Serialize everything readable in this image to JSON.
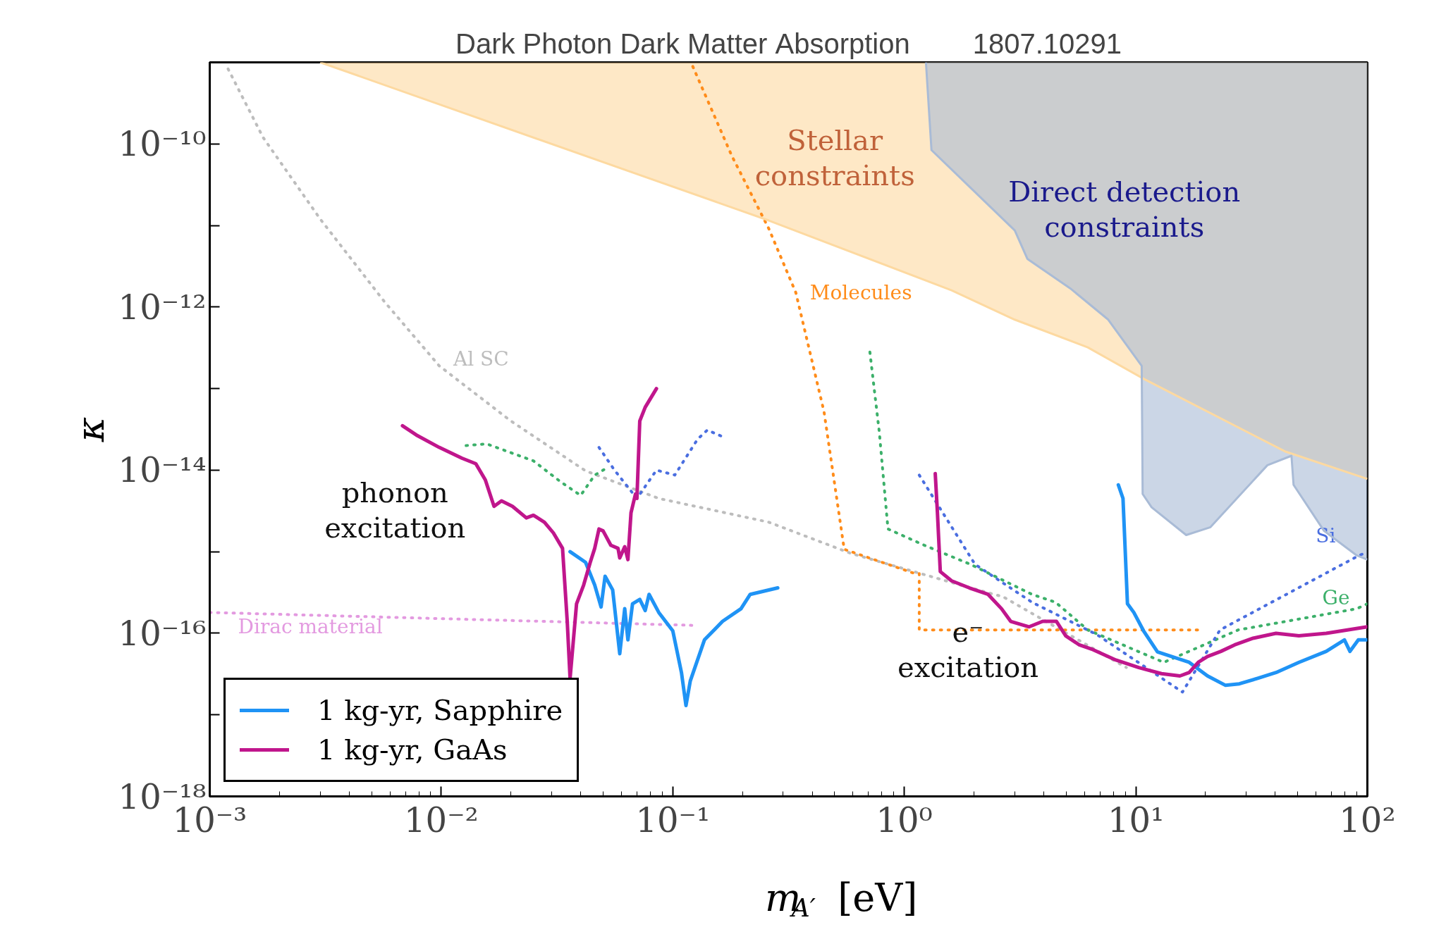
{
  "chart_data": {
    "type": "line",
    "title": "Dark Photon Dark Matter Absorption        1807.10291",
    "xlabel": "m$_{A′}$ [eV]",
    "ylabel": "κ",
    "log": "xy",
    "legend": "bottom left",
    "xlim": [
      0.001,
      100
    ],
    "ylim": [
      1e-18,
      1e-09
    ],
    "xticks": [
      {
        "value": 0.001,
        "label": "10⁻³"
      },
      {
        "value": 0.01,
        "label": "10⁻²"
      },
      {
        "value": 0.1,
        "label": "10⁻¹"
      },
      {
        "value": 1,
        "label": "10⁰"
      },
      {
        "value": 10,
        "label": "10¹"
      },
      {
        "value": 100,
        "label": "10²"
      }
    ],
    "yticks": [
      {
        "value": 1e-18,
        "label": "10⁻¹⁸"
      },
      {
        "value": 1e-17,
        "label": null
      },
      {
        "value": 1e-16,
        "label": "10⁻¹⁶"
      },
      {
        "value": 1e-15,
        "label": null
      },
      {
        "value": 1e-14,
        "label": "10⁻¹⁴"
      },
      {
        "value": 1e-13,
        "label": null
      },
      {
        "value": 1e-12,
        "label": "10⁻¹²"
      },
      {
        "value": 1e-11,
        "label": null
      },
      {
        "value": 1e-10,
        "label": "10⁻¹⁰"
      }
    ],
    "annotations": [
      "Stellar\nconstraints",
      "Direct detection\nconstraints",
      "phonon\nexcitation",
      "e⁻\nexcitation"
    ],
    "series": [
      {
        "color": "#fdd9a0",
        "x": [
          0.003,
          0.26,
          1.6,
          3.0,
          6.2,
          10.9,
          44,
          100
        ],
        "values": [
          1e-09,
          1.15e-11,
          1.6e-12,
          7e-13,
          3.2e-13,
          1.3e-13,
          1.7e-14,
          7.8e-15
        ],
        "lower": [
          1e-09,
          1.15e-11,
          1.6e-12,
          7e-13,
          3.2e-13,
          1.3e-13,
          1.7e-14,
          7.8e-15
        ],
        "upper": [
          1e-09,
          1e-09,
          1e-09,
          1e-09,
          1e-09,
          1e-09,
          1e-09,
          1e-09
        ]
      },
      {
        "color": "#a9bbd6",
        "x": [
          1.24,
          1.31,
          3.0,
          3.4,
          5.2,
          7.6,
          10.6,
          10.7,
          11.7,
          16.5,
          21,
          37,
          47,
          48,
          65,
          90,
          100
        ],
        "values": [
          1e-09,
          8.4e-11,
          8.7e-12,
          3.9e-12,
          1.7e-12,
          7e-13,
          1.9e-13,
          5.1e-15,
          3.5e-15,
          1.6e-15,
          2e-15,
          1.15e-14,
          1.5e-14,
          6.6e-15,
          1.8e-15,
          9e-16,
          8e-16
        ],
        "lower": [
          1e-09,
          8.4e-11,
          8.7e-12,
          3.9e-12,
          1.7e-12,
          7e-13,
          1.9e-13,
          5.1e-15,
          3.5e-15,
          1.6e-15,
          2e-15,
          1.15e-14,
          1.5e-14,
          6.6e-15,
          1.8e-15,
          9e-16,
          8e-16
        ],
        "upper": [
          1e-09,
          1e-09,
          1e-09,
          1e-09,
          1e-09,
          1e-09,
          1e-09,
          1e-09,
          1e-09,
          1e-09,
          1e-09,
          1e-09,
          1e-09,
          1e-09,
          1e-09,
          1e-09,
          1e-09
        ]
      },
      {
        "name": "Dirac material",
        "color": "#e39ae0",
        "line_style": "dotted",
        "x": [
          0.001,
          0.123
        ],
        "values": [
          1.8e-16,
          1.25e-16
        ]
      },
      {
        "name": "Al SC",
        "color": "#bdbdbd",
        "line_style": "dotted",
        "x": [
          0.0012,
          0.0017,
          0.003,
          0.0057,
          0.0098,
          0.02,
          0.042,
          0.087,
          0.26,
          0.59,
          1.75,
          2.67,
          9.1
        ],
        "values": [
          8.3e-10,
          1.2e-10,
          1.2e-11,
          1.15e-12,
          1.9e-13,
          4e-14,
          9.8e-15,
          4.5e-15,
          2.3e-15,
          9.5e-16,
          3.9e-16,
          2.8e-16,
          3.8e-17
        ]
      },
      {
        "name": "Molecules",
        "color": "#ff8c1a",
        "line_style": "dotted",
        "x": [
          0.122,
          0.18,
          0.26,
          0.34,
          0.45,
          0.55,
          1.11,
          1.16,
          1.16,
          19.1
        ],
        "values": [
          8.9e-10,
          7.1e-11,
          9.1e-12,
          1.5e-12,
          5.2e-14,
          1.07e-15,
          5.4e-16,
          5.4e-16,
          1.1e-16,
          1.1e-16
        ]
      },
      {
        "color": "#3cb06a",
        "line_style": "dotted",
        "x": [
          0.0128,
          0.0157,
          0.025,
          0.033,
          0.04,
          0.046,
          0.053
        ],
        "values": [
          2e-14,
          2.1e-14,
          1.3e-14,
          7.1e-15,
          4.9e-15,
          8.7e-15,
          1.1e-14
        ]
      },
      {
        "name": "Ge",
        "color": "#3cb06a",
        "line_style": "dotted",
        "x": [
          0.71,
          0.78,
          0.85,
          1.22,
          1.93,
          3.56,
          4.5,
          6.2,
          13.2,
          27.7,
          90,
          100
        ],
        "values": [
          2.8e-13,
          2.9e-14,
          1.9e-15,
          1.2e-15,
          7e-16,
          3e-16,
          2.4e-16,
          1.1e-16,
          4.4e-17,
          1.1e-16,
          2e-16,
          2.3e-16
        ]
      },
      {
        "color": "#4a6ee0",
        "line_style": "dotted",
        "x": [
          0.048,
          0.056,
          0.07,
          0.085,
          0.102,
          0.128,
          0.141,
          0.168
        ],
        "values": [
          1.9e-14,
          1e-14,
          4.5e-15,
          1e-14,
          8.7e-15,
          2.4e-14,
          3.1e-14,
          2.5e-14
        ]
      },
      {
        "name": "Si",
        "color": "#4a6ee0",
        "line_style": "dotted",
        "x": [
          1.16,
          2.02,
          3.56,
          6.8,
          15.9,
          23.1,
          90,
          100
        ],
        "values": [
          8.7e-15,
          7e-16,
          2.4e-16,
          9.6e-17,
          1.9e-17,
          1.1e-16,
          8.7e-16,
          1e-15
        ]
      },
      {
        "name": "1 kg-yr, Sapphire",
        "color": "#1f93f5",
        "line_style": "solid",
        "x": [
          0.036,
          0.042,
          0.046,
          0.049,
          0.051,
          0.055,
          0.059,
          0.062,
          0.064,
          0.067,
          0.072,
          0.076,
          0.079,
          0.087,
          0.1,
          0.109,
          0.114,
          0.119,
          0.137,
          0.164,
          0.197,
          0.216,
          0.284
        ],
        "values": [
          1e-15,
          7.4e-16,
          3.9e-16,
          2.1e-16,
          5e-16,
          3.4e-16,
          5.6e-17,
          2e-16,
          8.3e-17,
          2.3e-16,
          2.6e-16,
          1.9e-16,
          3e-16,
          1.8e-16,
          1.07e-16,
          3.3e-17,
          1.3e-17,
          2.6e-17,
          8.3e-17,
          1.4e-16,
          2e-16,
          3e-16,
          3.6e-16
        ]
      },
      {
        "color": "#1f93f5",
        "line_style": "solid",
        "x": [
          8.4,
          8.8,
          9.2,
          9.8,
          10.8,
          12.4,
          17.0,
          20.4,
          24.4,
          28.0,
          33.6,
          40.3,
          50.6,
          66.4,
          79.6,
          84.1,
          91.4,
          100
        ],
        "values": [
          6.6e-15,
          4.5e-15,
          2.3e-16,
          1.8e-16,
          1.07e-16,
          5.9e-17,
          4.4e-17,
          3e-17,
          2.3e-17,
          2.4e-17,
          2.8e-17,
          3.3e-17,
          4.4e-17,
          6e-17,
          8.3e-17,
          6e-17,
          8.3e-17,
          8.3e-17
        ]
      },
      {
        "name": "1 kg-yr, GaAs",
        "color": "#c0168c",
        "line_style": "solid",
        "x": [
          0.0068,
          0.0078,
          0.0098,
          0.0123,
          0.0141,
          0.0155,
          0.0169,
          0.0182,
          0.0203,
          0.0233,
          0.025,
          0.0279,
          0.0305,
          0.0334,
          0.035,
          0.036,
          0.0384,
          0.0412,
          0.044,
          0.046,
          0.048,
          0.05,
          0.054,
          0.058,
          0.059,
          0.062,
          0.064,
          0.066,
          0.069,
          0.07,
          0.072,
          0.076,
          0.085
        ],
        "values": [
          3.5e-14,
          2.7e-14,
          1.9e-14,
          1.4e-14,
          1.2e-14,
          7.6e-15,
          3.6e-15,
          4.2e-15,
          3.6e-15,
          2.6e-15,
          2.8e-15,
          2.3e-15,
          1.7e-15,
          1.1e-15,
          1.4e-16,
          2.8e-17,
          2.3e-16,
          3.9e-16,
          7.4e-16,
          1.1e-15,
          1.9e-15,
          1.8e-15,
          1.2e-15,
          1.1e-15,
          8.4e-16,
          1.15e-15,
          8e-16,
          3e-15,
          5.1e-15,
          4.5e-15,
          4e-14,
          5.9e-14,
          1e-13
        ]
      },
      {
        "color": "#c0168c",
        "line_style": "solid",
        "x": [
          1.36,
          1.39,
          1.43,
          1.6,
          1.91,
          2.3,
          2.63,
          2.88,
          3.46,
          3.96,
          4.54,
          4.98,
          5.7,
          6.53,
          8.2,
          10.3,
          12.9,
          15.5,
          17.0,
          18.6,
          20.4,
          23.3,
          26.7,
          32.1,
          40.3,
          50.6,
          66.4,
          100
        ],
        "values": [
          9.1e-15,
          3e-15,
          5.7e-16,
          4.4e-16,
          3.6e-16,
          3e-16,
          2e-16,
          1.4e-16,
          1.2e-16,
          1.4e-16,
          1.4e-16,
          9.3e-17,
          7.2e-17,
          6.3e-17,
          4.7e-17,
          3.8e-17,
          3.2e-17,
          3e-17,
          3.3e-17,
          4.4e-17,
          5.2e-17,
          6e-17,
          7.2e-17,
          8.7e-17,
          1e-16,
          9.3e-17,
          1e-16,
          1.2e-16
        ]
      }
    ]
  }
}
